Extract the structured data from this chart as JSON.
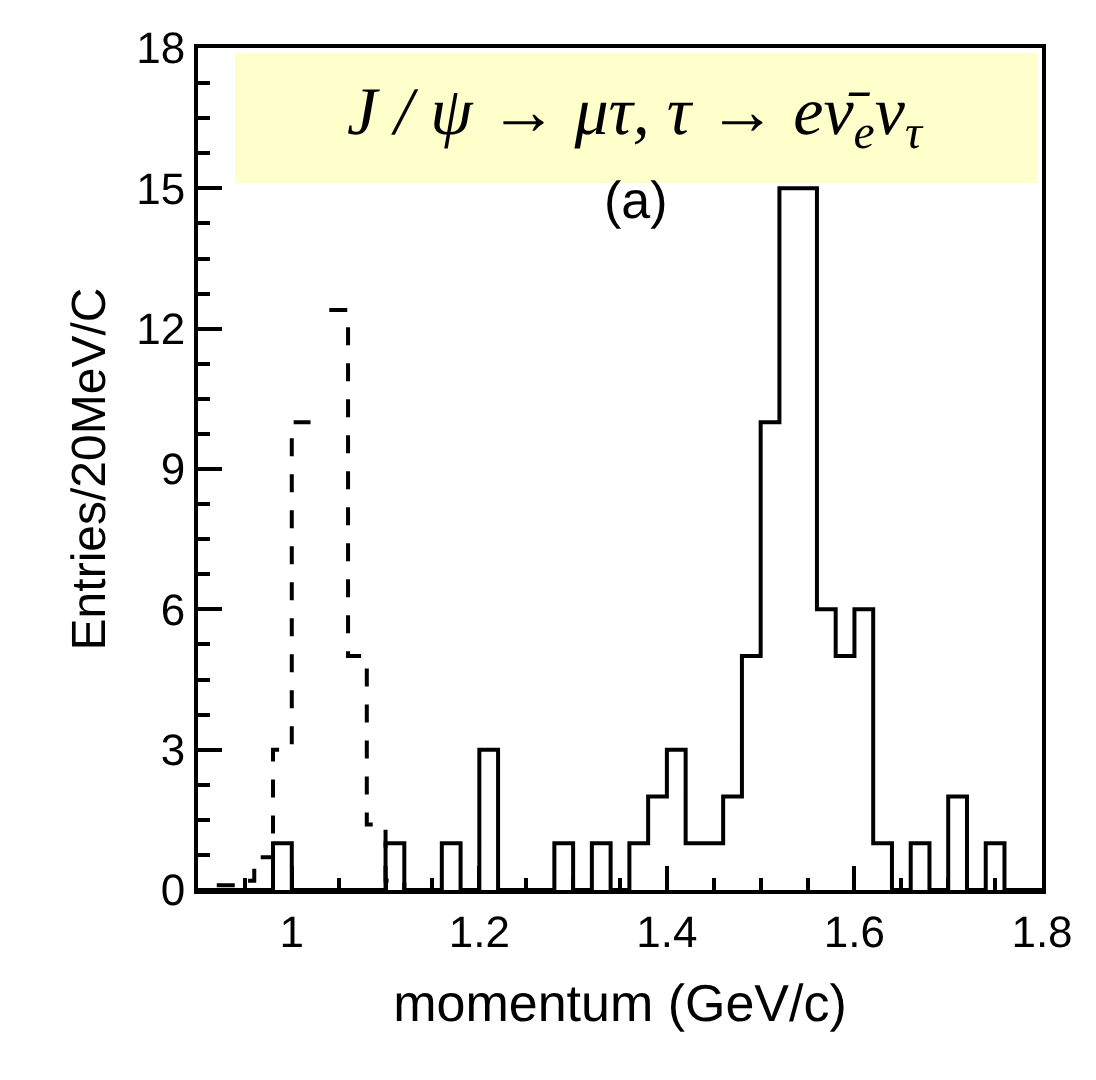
{
  "chart_data": {
    "type": "histogram",
    "title": "J / ψ → μτ, τ → eν̄$_{e}$ν$_{τ}$",
    "xlabel": "momentum (GeV/c)",
    "ylabel": "Entries/20MeV/C",
    "annotations": [
      "(a)"
    ],
    "bins": [
      0.9,
      0.92,
      0.94,
      0.96,
      0.98,
      1.0,
      1.02,
      1.04,
      1.06,
      1.08,
      1.1,
      1.12,
      1.14,
      1.16,
      1.18,
      1.2,
      1.22,
      1.24,
      1.26,
      1.28,
      1.3,
      1.32,
      1.34,
      1.36,
      1.38,
      1.4,
      1.42,
      1.44,
      1.46,
      1.48,
      1.5,
      1.52,
      1.54,
      1.56,
      1.58,
      1.6,
      1.62,
      1.64,
      1.66,
      1.68,
      1.7,
      1.72,
      1.74,
      1.76,
      1.78,
      1.8
    ],
    "series": [
      {
        "type": "step",
        "color": "#000000",
        "line_style": "dashed",
        "x": [
          0.92,
          0.94,
          0.96,
          0.98,
          1.0,
          1.02,
          1.04,
          1.06,
          1.08,
          1.1,
          1.12,
          1.14
        ],
        "values": [
          0.1,
          0.2,
          0.7,
          3,
          10,
          null,
          12.4,
          5,
          1.4,
          0.2,
          0,
          0
        ]
      },
      {
        "color": "#000000",
        "line_style": "solid",
        "values": [
          0,
          0,
          0,
          0,
          1,
          0,
          0,
          0,
          0,
          0,
          1,
          0,
          0,
          1,
          0,
          3,
          0,
          0,
          0,
          1,
          0,
          1,
          0,
          1,
          2,
          3,
          1,
          1,
          2,
          5,
          10,
          15,
          15,
          6,
          5,
          6,
          1,
          0,
          1,
          0,
          2,
          0,
          1,
          0,
          0
        ]
      }
    ],
    "xlim": [
      0.9,
      1.8
    ],
    "xticks": [
      1,
      1.2,
      1.4,
      1.6,
      1.8
    ],
    "ylim": [
      0,
      18
    ],
    "yticks": [
      0,
      3,
      6,
      9,
      12,
      15,
      18
    ],
    "grid": false
  }
}
